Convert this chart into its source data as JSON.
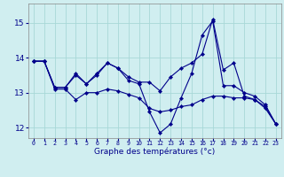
{
  "xlabel": "Graphe des températures (°c)",
  "background_color": "#d0eef0",
  "grid_color": "#a8d8d8",
  "line_color": "#00008b",
  "xlim": [
    -0.5,
    23.5
  ],
  "ylim": [
    11.7,
    15.55
  ],
  "yticks": [
    12,
    13,
    14,
    15
  ],
  "xticks": [
    0,
    1,
    2,
    3,
    4,
    5,
    6,
    7,
    8,
    9,
    10,
    11,
    12,
    13,
    14,
    15,
    16,
    17,
    18,
    19,
    20,
    21,
    22,
    23
  ],
  "series": [
    {
      "x": [
        0,
        1,
        2,
        3,
        4,
        5,
        6,
        7,
        8,
        9,
        10,
        11,
        12,
        13,
        14,
        15,
        16,
        17,
        18,
        19,
        20,
        21,
        22,
        23
      ],
      "y": [
        13.9,
        13.9,
        13.1,
        13.1,
        12.8,
        13.0,
        13.0,
        13.1,
        13.05,
        12.95,
        12.85,
        12.55,
        12.45,
        12.5,
        12.6,
        12.65,
        12.8,
        12.9,
        12.9,
        12.85,
        12.85,
        12.8,
        12.55,
        12.1
      ]
    },
    {
      "x": [
        0,
        1,
        2,
        3,
        4,
        5,
        6,
        7,
        8,
        9,
        10,
        11,
        12,
        13,
        14,
        15,
        16,
        17,
        18,
        19,
        20,
        21,
        22,
        23
      ],
      "y": [
        13.9,
        13.9,
        13.15,
        13.15,
        13.5,
        13.25,
        13.5,
        13.85,
        13.7,
        13.35,
        13.25,
        12.45,
        11.85,
        12.1,
        12.85,
        13.55,
        14.65,
        15.05,
        13.2,
        13.2,
        13.0,
        12.9,
        12.65,
        12.1
      ]
    },
    {
      "x": [
        0,
        1,
        2,
        3,
        4,
        5,
        6,
        7,
        8,
        9,
        10,
        11,
        12,
        13,
        14,
        15,
        16,
        17,
        18,
        19,
        20,
        21,
        22,
        23
      ],
      "y": [
        13.9,
        13.9,
        13.15,
        13.15,
        13.55,
        13.25,
        13.55,
        13.85,
        13.7,
        13.45,
        13.3,
        13.3,
        13.05,
        13.45,
        13.7,
        13.85,
        14.1,
        15.1,
        13.65,
        13.85,
        12.9,
        12.8,
        12.6,
        12.1
      ]
    }
  ]
}
